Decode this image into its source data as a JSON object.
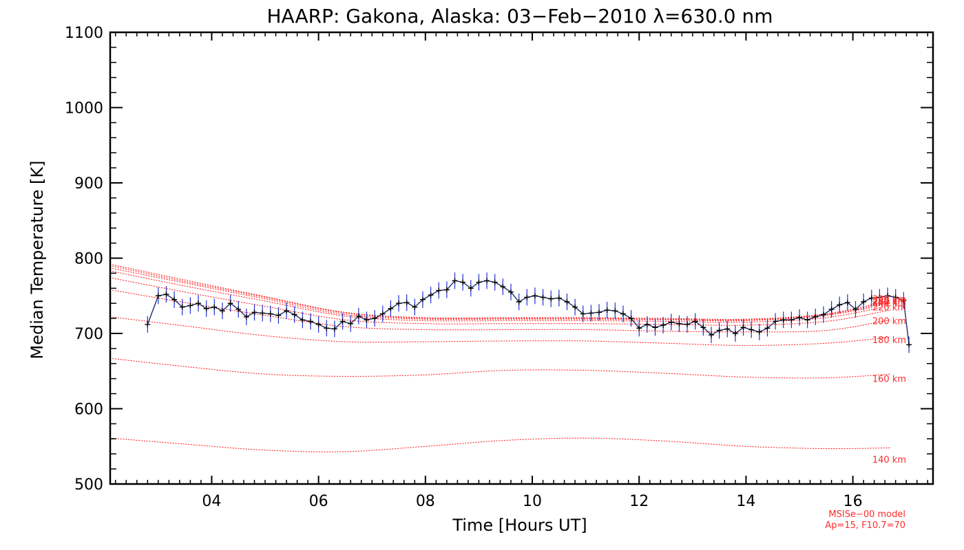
{
  "chart_data": {
    "type": "line",
    "title": "HAARP: Gakona,  Alaska: 03−Feb−2010 λ=630.0 nm",
    "xlabel": "Time [Hours UT]",
    "ylabel": "Median Temperature [K]",
    "xlim": [
      2.1,
      17.5
    ],
    "ylim": [
      500,
      1100
    ],
    "xticks": [
      4,
      6,
      8,
      10,
      12,
      14,
      16
    ],
    "xtick_labels": [
      "04",
      "06",
      "08",
      "10",
      "12",
      "14",
      "16"
    ],
    "yticks": [
      500,
      600,
      700,
      800,
      900,
      1000,
      1100
    ],
    "ytick_labels": [
      "500",
      "600",
      "700",
      "800",
      "900",
      "1000",
      "1100"
    ],
    "x_minor_step": 0.2,
    "y_minor_step": 20,
    "grid": false,
    "colors": {
      "measured_line": "#1c2d66",
      "error_bars": "#2030d0",
      "markers": "#000000",
      "model_curves": "#ff2a2a",
      "axes": "#000000"
    },
    "measured": {
      "x": [
        2.8,
        3.0,
        3.15,
        3.3,
        3.45,
        3.6,
        3.75,
        3.9,
        4.05,
        4.2,
        4.35,
        4.5,
        4.65,
        4.8,
        4.95,
        5.1,
        5.25,
        5.4,
        5.55,
        5.7,
        5.85,
        6.0,
        6.15,
        6.3,
        6.45,
        6.6,
        6.75,
        6.9,
        7.05,
        7.2,
        7.35,
        7.5,
        7.65,
        7.8,
        7.95,
        8.1,
        8.25,
        8.4,
        8.55,
        8.7,
        8.85,
        9.0,
        9.15,
        9.3,
        9.45,
        9.6,
        9.75,
        9.9,
        10.05,
        10.2,
        10.35,
        10.5,
        10.65,
        10.8,
        10.95,
        11.1,
        11.25,
        11.4,
        11.55,
        11.7,
        11.85,
        12.0,
        12.15,
        12.3,
        12.45,
        12.6,
        12.75,
        12.9,
        13.05,
        13.2,
        13.35,
        13.5,
        13.65,
        13.8,
        13.95,
        14.1,
        14.25,
        14.4,
        14.55,
        14.7,
        14.85,
        15.0,
        15.15,
        15.3,
        15.45,
        15.6,
        15.75,
        15.9,
        16.05,
        16.2,
        16.35,
        16.5,
        16.65,
        16.8,
        16.95,
        17.05
      ],
      "y": [
        712,
        750,
        752,
        745,
        735,
        737,
        740,
        733,
        735,
        730,
        740,
        732,
        722,
        728,
        727,
        726,
        724,
        730,
        725,
        718,
        716,
        712,
        707,
        706,
        716,
        713,
        723,
        718,
        720,
        726,
        733,
        740,
        741,
        735,
        745,
        751,
        757,
        758,
        770,
        768,
        760,
        768,
        770,
        768,
        762,
        755,
        742,
        748,
        750,
        748,
        746,
        747,
        742,
        735,
        726,
        727,
        728,
        731,
        730,
        726,
        720,
        707,
        712,
        708,
        711,
        715,
        713,
        712,
        716,
        708,
        698,
        704,
        706,
        700,
        708,
        705,
        702,
        707,
        716,
        718,
        718,
        721,
        718,
        722,
        725,
        732,
        738,
        741,
        732,
        742,
        747,
        748,
        750,
        748,
        744,
        685
      ],
      "yerr": 11
    },
    "model_series": [
      {
        "name": "140 km",
        "x": [
          2.1,
          3.5,
          5.0,
          6.5,
          8.0,
          9.5,
          11.0,
          12.5,
          14.0,
          15.5,
          16.7
        ],
        "y": [
          561,
          553,
          545,
          543,
          550,
          558,
          561,
          557,
          550,
          547,
          548
        ]
      },
      {
        "name": "160 km",
        "x": [
          2.1,
          3.5,
          5.0,
          6.5,
          8.0,
          9.5,
          11.0,
          12.5,
          14.0,
          15.5,
          16.7
        ],
        "y": [
          667,
          656,
          646,
          643,
          645,
          651,
          651,
          647,
          642,
          641,
          646
        ]
      },
      {
        "name": "180 km",
        "x": [
          2.1,
          3.5,
          5.0,
          6.5,
          8.0,
          9.5,
          11.0,
          12.5,
          14.0,
          15.5,
          16.7
        ],
        "y": [
          722,
          710,
          697,
          689,
          689,
          690,
          690,
          687,
          684,
          687,
          695
        ]
      },
      {
        "name": "200 km",
        "x": [
          2.1,
          3.5,
          5.0,
          6.5,
          8.0,
          9.5,
          11.0,
          12.5,
          14.0,
          15.5,
          16.7
        ],
        "y": [
          758,
          741,
          724,
          709,
          705,
          705,
          705,
          703,
          702,
          704,
          718
        ]
      },
      {
        "name": "220 km",
        "x": [
          2.1,
          3.5,
          5.0,
          6.5,
          8.0,
          9.5,
          11.0,
          12.5,
          14.0,
          15.5,
          16.7
        ],
        "y": [
          774,
          755,
          736,
          718,
          713,
          713,
          713,
          712,
          711,
          716,
          731
        ]
      },
      {
        "name": "240 km",
        "x": [
          2.1,
          3.5,
          5.0,
          6.5,
          8.0,
          9.5,
          11.0,
          12.5,
          14.0,
          15.5,
          16.7
        ],
        "y": [
          783,
          763,
          743,
          723,
          717,
          717,
          717,
          716,
          715,
          721,
          737
        ]
      },
      {
        "name": "260 km",
        "x": [
          2.1,
          3.5,
          5.0,
          6.5,
          8.0,
          9.5,
          11.0,
          12.5,
          14.0,
          15.5,
          16.7
        ],
        "y": [
          787,
          767,
          746,
          725,
          719,
          719,
          719,
          718,
          717,
          724,
          740
        ]
      },
      {
        "name": "280 km",
        "x": [
          2.1,
          3.5,
          5.0,
          6.5,
          8.0,
          9.5,
          11.0,
          12.5,
          14.0,
          15.5,
          16.7
        ],
        "y": [
          790,
          769,
          748,
          727,
          720,
          720,
          720,
          719,
          718,
          725,
          742
        ]
      },
      {
        "name": "300 km",
        "x": [
          2.1,
          3.5,
          5.0,
          6.5,
          8.0,
          9.5,
          11.0,
          12.5,
          14.0,
          15.5,
          16.7
        ],
        "y": [
          792,
          771,
          749,
          728,
          721,
          721,
          721,
          720,
          719,
          726,
          744
        ]
      }
    ],
    "model_labels": [
      "140 km",
      "160 km",
      "180 km",
      "200 km",
      "220 km",
      "240 km",
      "260 km",
      "280 km",
      "300 km"
    ],
    "model_label_values": [
      533,
      640,
      692,
      717,
      735,
      741,
      743,
      744,
      746
    ],
    "note_lines": [
      "MSISe−00 model",
      "Ap=15, F10.7=70"
    ]
  }
}
